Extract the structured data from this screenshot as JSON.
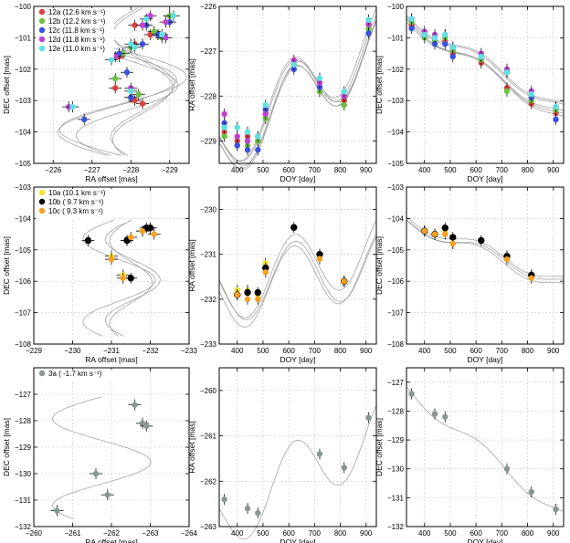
{
  "figure": {
    "title": ""
  },
  "chart_data": [
    {
      "id": "r1c1",
      "type": "scatter",
      "xlabel": "RA offset [mas]",
      "ylabel": "DEC offset [mas]",
      "xlim": [
        -225.5,
        -229.5
      ],
      "ylim": [
        -105,
        -100
      ],
      "xticks": [
        -226,
        -227,
        -228,
        -229
      ],
      "yticks": [
        -100,
        -101,
        -102,
        -103,
        -104,
        -105
      ],
      "legend": [
        {
          "label": "12a (12.6 km s⁻¹)",
          "color": "#e04040"
        },
        {
          "label": "12b (12.2 km s⁻¹)",
          "color": "#6cc040"
        },
        {
          "label": "12c (11.8 km s⁻¹)",
          "color": "#3a50e0"
        },
        {
          "label": "12d (11.8 km s⁻¹)",
          "color": "#c040d0"
        },
        {
          "label": "12e (11.0 km s⁻¹)",
          "color": "#60e0e0"
        }
      ],
      "series": [
        {
          "name": "12a",
          "color": "#e04040",
          "x": [
            -228.3,
            -228.1,
            -227.6,
            -227.7,
            -228.5,
            -228.7,
            -229.0,
            -228.1,
            -228.1
          ],
          "y": [
            -103.1,
            -103.0,
            -102.6,
            -101.6,
            -100.9,
            -100.9,
            -100.3,
            -100.6,
            -101.2
          ]
        },
        {
          "name": "12b",
          "color": "#6cc040",
          "x": [
            -228.2,
            -228.0,
            -227.6,
            -227.8,
            -228.6,
            -228.8,
            -229.0,
            -228.0
          ],
          "y": [
            -102.8,
            -102.9,
            -102.3,
            -101.5,
            -100.8,
            -101.0,
            -100.3,
            -101.3
          ]
        },
        {
          "name": "12c",
          "color": "#3a50e0",
          "x": [
            -226.8,
            -228.0,
            -227.9,
            -227.7,
            -228.4,
            -228.7,
            -229.0,
            -228.3
          ],
          "y": [
            -103.6,
            -102.9,
            -102.1,
            -101.5,
            -100.6,
            -100.9,
            -100.5,
            -101.2
          ]
        },
        {
          "name": "12d",
          "color": "#c040d0",
          "x": [
            -226.4,
            -228.0,
            -227.6,
            -228.3,
            -228.5,
            -228.9,
            -228.9
          ],
          "y": [
            -103.2,
            -102.6,
            -101.6,
            -100.6,
            -100.3,
            -101.0,
            -100.5
          ]
        },
        {
          "name": "12e",
          "color": "#60e0e0",
          "x": [
            -226.5,
            -228.0,
            -227.5,
            -228.0,
            -228.4,
            -228.8,
            -229.1,
            -228.1
          ],
          "y": [
            -103.2,
            -102.7,
            -101.7,
            -101.2,
            -100.4,
            -100.9,
            -100.3,
            -101.3
          ]
        }
      ]
    },
    {
      "id": "r1c2",
      "type": "scatter",
      "xlabel": "DOY [day]",
      "ylabel": "RA offset [mas]",
      "xlim": [
        330,
        940
      ],
      "ylim": [
        -229.5,
        -226
      ],
      "xticks": [
        400,
        500,
        600,
        700,
        800,
        900
      ],
      "yticks": [
        -226,
        -227,
        -228,
        -229
      ],
      "series": [
        {
          "name": "12a",
          "color": "#e04040",
          "x": [
            350,
            400,
            440,
            480,
            510,
            620,
            720,
            815,
            910
          ],
          "y": [
            -228.8,
            -229.0,
            -228.9,
            -229.0,
            -228.4,
            -227.3,
            -227.8,
            -228.1,
            -226.4
          ]
        },
        {
          "name": "12b",
          "color": "#6cc040",
          "x": [
            350,
            400,
            440,
            480,
            510,
            620,
            720,
            815,
            910
          ],
          "y": [
            -228.9,
            -229.1,
            -229.1,
            -229.0,
            -228.5,
            -227.3,
            -227.9,
            -228.2,
            -226.5
          ]
        },
        {
          "name": "12c",
          "color": "#3a50e0",
          "x": [
            350,
            400,
            440,
            480,
            510,
            620,
            720,
            815,
            910
          ],
          "y": [
            -228.6,
            -229.1,
            -229.2,
            -229.2,
            -228.3,
            -227.4,
            -227.8,
            -228.0,
            -226.6
          ]
        },
        {
          "name": "12d",
          "color": "#c040d0",
          "x": [
            350,
            400,
            440,
            480,
            510,
            620,
            720,
            815,
            910
          ],
          "y": [
            -228.4,
            -228.9,
            -229.0,
            -228.9,
            -228.4,
            -227.2,
            -227.7,
            -228.0,
            -226.4
          ]
        },
        {
          "name": "12e",
          "color": "#60e0e0",
          "x": [
            350,
            400,
            440,
            480,
            510,
            620,
            720,
            815,
            910
          ],
          "y": [
            -228.7,
            -228.7,
            -228.8,
            -228.9,
            -228.2,
            -227.3,
            -227.6,
            -227.9,
            -226.3
          ]
        }
      ]
    },
    {
      "id": "r1c3",
      "type": "scatter",
      "xlabel": "DOY [day]",
      "ylabel": "DEC offset [mas]",
      "xlim": [
        330,
        940
      ],
      "ylim": [
        -105,
        -100
      ],
      "xticks": [
        400,
        500,
        600,
        700,
        800,
        900
      ],
      "yticks": [
        -100,
        -101,
        -102,
        -103,
        -104,
        -105
      ],
      "series": [
        {
          "name": "12a",
          "color": "#e04040",
          "x": [
            350,
            400,
            440,
            480,
            510,
            620,
            720,
            815,
            910
          ],
          "y": [
            -100.6,
            -100.9,
            -101.0,
            -101.1,
            -101.5,
            -101.8,
            -102.6,
            -103.1,
            -103.4
          ]
        },
        {
          "name": "12b",
          "color": "#6cc040",
          "x": [
            350,
            400,
            440,
            480,
            510,
            620,
            720,
            815,
            910
          ],
          "y": [
            -100.5,
            -101.0,
            -101.1,
            -101.0,
            -101.4,
            -101.7,
            -102.7,
            -103.0,
            -103.3
          ]
        },
        {
          "name": "12c",
          "color": "#3a50e0",
          "x": [
            350,
            400,
            440,
            480,
            510,
            620,
            720,
            815,
            910
          ],
          "y": [
            -100.7,
            -100.9,
            -101.2,
            -101.2,
            -101.6,
            -101.6,
            -102.1,
            -102.9,
            -103.6
          ]
        },
        {
          "name": "12d",
          "color": "#c040d0",
          "x": [
            350,
            400,
            440,
            480,
            510,
            620,
            720,
            815,
            910
          ],
          "y": [
            -100.4,
            -100.8,
            -100.9,
            -100.9,
            -101.3,
            -101.5,
            -102.0,
            -102.7,
            -103.2
          ]
        },
        {
          "name": "12e",
          "color": "#60e0e0",
          "x": [
            350,
            400,
            440,
            480,
            510,
            620,
            720,
            815,
            910
          ],
          "y": [
            -100.4,
            -100.9,
            -101.0,
            -100.9,
            -101.3,
            -101.6,
            -102.1,
            -102.8,
            -103.2
          ]
        }
      ]
    },
    {
      "id": "r2c1",
      "type": "scatter",
      "xlabel": "RA offset [mas]",
      "ylabel": "DEC offset [mas]",
      "xlim": [
        -229,
        -233
      ],
      "ylim": [
        -108,
        -103
      ],
      "xticks": [
        -229,
        -230,
        -231,
        -232,
        -233
      ],
      "yticks": [
        -103,
        -104,
        -105,
        -106,
        -107,
        -108
      ],
      "legend": [
        {
          "label": "10a (10.1 km s⁻¹)",
          "color": "#f5e530"
        },
        {
          "label": "10b ( 9.7 km s⁻¹)",
          "color": "#000000"
        },
        {
          "label": "10c ( 9.3 km s⁻¹)",
          "color": "#f5a020"
        }
      ],
      "series": [
        {
          "name": "10a",
          "color": "#f5e530",
          "x": [
            -231.0,
            -231.4,
            -231.8,
            -232.0,
            -231.3
          ],
          "y": [
            -105.2,
            -104.7,
            -104.4,
            -104.3,
            -105.8
          ]
        },
        {
          "name": "10b",
          "color": "#000000",
          "x": [
            -230.4,
            -231.4,
            -231.9,
            -232.0,
            -231.5
          ],
          "y": [
            -104.7,
            -104.7,
            -104.3,
            -104.3,
            -105.9
          ]
        },
        {
          "name": "10c",
          "color": "#f5a020",
          "x": [
            -231.0,
            -231.5,
            -231.8,
            -232.1,
            -231.3
          ],
          "y": [
            -105.3,
            -104.6,
            -104.4,
            -104.5,
            -105.9
          ]
        }
      ]
    },
    {
      "id": "r2c2",
      "type": "scatter",
      "xlabel": "DOY [day]",
      "ylabel": "RA offset [mas]",
      "xlim": [
        330,
        940
      ],
      "ylim": [
        -233,
        -229.5
      ],
      "xticks": [
        400,
        500,
        600,
        700,
        800,
        900
      ],
      "yticks": [
        -230,
        -231,
        -232,
        -233
      ],
      "series": [
        {
          "name": "10a",
          "color": "#f5e530",
          "x": [
            400,
            440,
            480,
            510,
            720,
            815
          ],
          "y": [
            -231.8,
            -231.8,
            -231.9,
            -231.2,
            -231.0,
            -231.6
          ]
        },
        {
          "name": "10b",
          "color": "#000000",
          "x": [
            400,
            440,
            480,
            510,
            620,
            720,
            815
          ],
          "y": [
            -231.9,
            -231.85,
            -231.85,
            -231.3,
            -230.4,
            -231.0,
            -231.6
          ]
        },
        {
          "name": "10c",
          "color": "#f5a020",
          "x": [
            400,
            440,
            480,
            510,
            720,
            815
          ],
          "y": [
            -231.9,
            -232.0,
            -232.0,
            -231.4,
            -231.1,
            -231.6
          ]
        }
      ]
    },
    {
      "id": "r2c3",
      "type": "scatter",
      "xlabel": "DOY [day]",
      "ylabel": "DEC offset [mas]",
      "xlim": [
        330,
        940
      ],
      "ylim": [
        -108,
        -103
      ],
      "xticks": [
        400,
        500,
        600,
        700,
        800,
        900
      ],
      "yticks": [
        -103,
        -104,
        -105,
        -106,
        -107,
        -108
      ],
      "series": [
        {
          "name": "10a",
          "color": "#f5e530",
          "x": [
            400,
            440,
            480,
            510,
            720,
            815
          ],
          "y": [
            -104.4,
            -104.5,
            -104.4,
            -104.8,
            -105.2,
            -105.8
          ]
        },
        {
          "name": "10b",
          "color": "#000000",
          "x": [
            400,
            440,
            480,
            510,
            620,
            720,
            815
          ],
          "y": [
            -104.4,
            -104.5,
            -104.3,
            -104.6,
            -104.7,
            -105.2,
            -105.8
          ]
        },
        {
          "name": "10c",
          "color": "#f5a020",
          "x": [
            400,
            440,
            480,
            510,
            720,
            815
          ],
          "y": [
            -104.4,
            -104.5,
            -104.5,
            -104.8,
            -105.3,
            -105.9
          ]
        }
      ]
    },
    {
      "id": "r3c1",
      "type": "scatter",
      "xlabel": "RA offset [mas]",
      "ylabel": "DEC offset [mas]",
      "xlim": [
        -260,
        -264
      ],
      "ylim": [
        -132,
        -126
      ],
      "xticks": [
        -260,
        -261,
        -262,
        -263,
        -264
      ],
      "yticks": [
        -127,
        -128,
        -129,
        -130,
        -131,
        -132
      ],
      "legend": [
        {
          "label": "3a ( -1.7 km s⁻¹)",
          "color": "#8a9690"
        }
      ],
      "series": [
        {
          "name": "3a",
          "color": "#8a9690",
          "x": [
            -262.6,
            -262.8,
            -262.9,
            -261.6,
            -261.9,
            -260.6
          ],
          "y": [
            -127.4,
            -128.1,
            -128.2,
            -130.0,
            -130.8,
            -131.4
          ]
        }
      ]
    },
    {
      "id": "r3c2",
      "type": "scatter",
      "xlabel": "DOY [day]",
      "ylabel": "RA offset [mas]",
      "xlim": [
        330,
        940
      ],
      "ylim": [
        -263,
        -259.5
      ],
      "xticks": [
        400,
        500,
        600,
        700,
        800,
        900
      ],
      "yticks": [
        -260,
        -261,
        -262,
        -263
      ],
      "series": [
        {
          "name": "3a",
          "color": "#8a9690",
          "x": [
            350,
            440,
            480,
            720,
            815,
            910
          ],
          "y": [
            -262.4,
            -262.6,
            -262.7,
            -261.4,
            -261.7,
            -260.6
          ]
        }
      ]
    },
    {
      "id": "r3c3",
      "type": "scatter",
      "xlabel": "DOY [day]",
      "ylabel": "DEC offset [mas]",
      "xlim": [
        330,
        940
      ],
      "ylim": [
        -132,
        -126.5
      ],
      "xticks": [
        400,
        500,
        600,
        700,
        800,
        900
      ],
      "yticks": [
        -127,
        -128,
        -129,
        -130,
        -131,
        -132
      ],
      "series": [
        {
          "name": "3a",
          "color": "#8a9690",
          "x": [
            350,
            440,
            480,
            720,
            815,
            910
          ],
          "y": [
            -127.4,
            -128.1,
            -128.2,
            -130.0,
            -130.8,
            -131.4
          ]
        }
      ]
    }
  ]
}
